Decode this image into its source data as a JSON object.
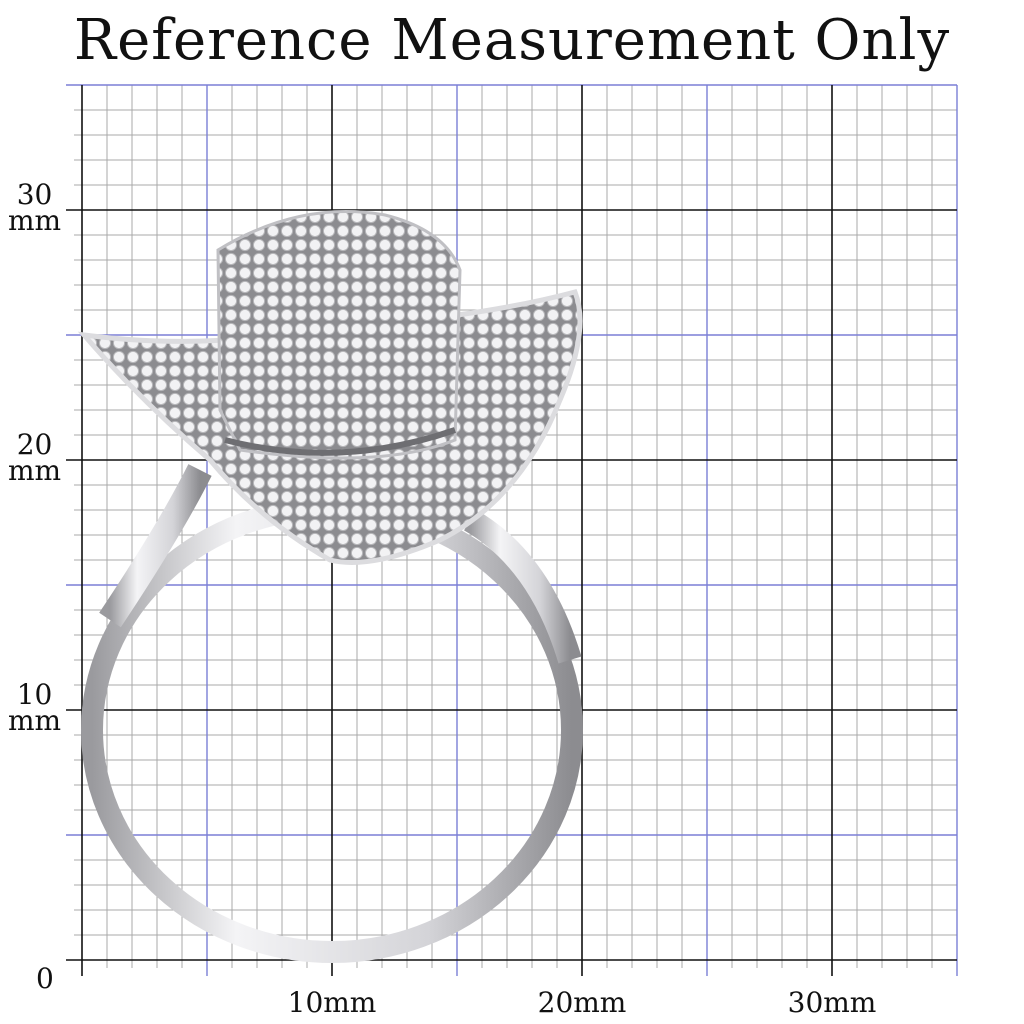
{
  "title": "Reference Measurement Only",
  "y_labels": [
    {
      "value": "30",
      "unit": "mm"
    },
    {
      "value": "20",
      "unit": "mm"
    },
    {
      "value": "10",
      "unit": "mm"
    }
  ],
  "origin_label": "0",
  "x_labels": [
    "10mm",
    "20mm",
    "30mm"
  ],
  "grid": {
    "range_mm": 35,
    "minor_mm": 1,
    "mid_mm": 5,
    "major_mm": 10,
    "minor_color": "#a8a8a8",
    "mid_color": "#7b7fd6",
    "major_color": "#111111"
  },
  "subject": {
    "icon": "pave-crystal-top-hat-ring",
    "metal_color": "#c9c9cc"
  }
}
